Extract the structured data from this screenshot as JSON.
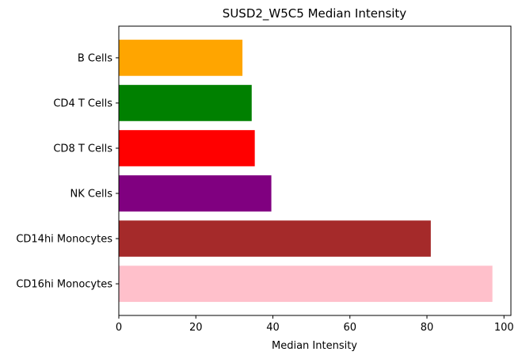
{
  "chart_data": {
    "type": "bar",
    "orientation": "horizontal",
    "title": "SUSD2_W5C5 Median Intensity",
    "xlabel": "Median Intensity",
    "ylabel": "",
    "categories": [
      "B Cells",
      "CD4 T Cells",
      "CD8 T Cells",
      "NK Cells",
      "CD14hi Monocytes",
      "CD16hi Monocytes"
    ],
    "values": [
      32.1,
      34.5,
      35.3,
      39.6,
      81.0,
      97.0
    ],
    "colors": [
      "#FFA500",
      "#008000",
      "#FF0000",
      "#800080",
      "#A52A2A",
      "#FFC0CB"
    ],
    "xlim": [
      0,
      101.8
    ],
    "xticks": [
      0,
      20,
      40,
      60,
      80,
      100
    ],
    "xtick_labels": [
      "0",
      "20",
      "40",
      "60",
      "80",
      "100"
    ],
    "grid": false,
    "legend": false
  }
}
